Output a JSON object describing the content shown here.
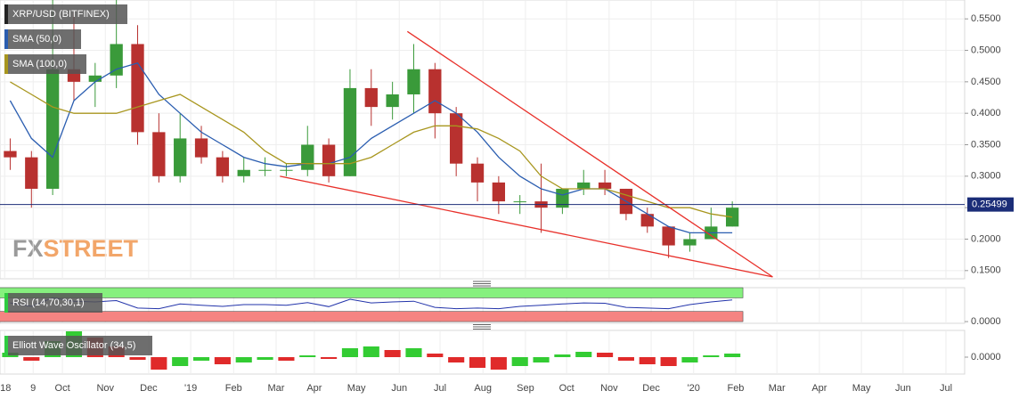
{
  "chart_data": {
    "type": "candlestick",
    "title": "XRP/USD (BITFINEX)",
    "x": [
      -4.25,
      -3.75,
      -3.25,
      -2.75,
      -2.25,
      -1.75,
      -1.25,
      -0.75,
      -0.25,
      0.25,
      0.75,
      1.25,
      1.75,
      2.25,
      2.75,
      3.25,
      3.75,
      4.25,
      4.75,
      5.25,
      5.75,
      6.25,
      6.75,
      7.25,
      7.75,
      8.25,
      8.75,
      9.25,
      9.75,
      10.25,
      10.75,
      11.25,
      11.75,
      12.25,
      12.75
    ],
    "open": [
      0.34,
      0.33,
      0.28,
      0.47,
      0.45,
      0.46,
      0.51,
      0.37,
      0.3,
      0.36,
      0.33,
      0.3,
      0.31,
      0.31,
      0.31,
      0.35,
      0.3,
      0.44,
      0.41,
      0.43,
      0.47,
      0.4,
      0.32,
      0.29,
      0.26,
      0.26,
      0.25,
      0.28,
      0.29,
      0.28,
      0.24,
      0.22,
      0.19,
      0.2,
      0.22
    ],
    "high": [
      0.36,
      0.34,
      0.58,
      0.56,
      0.48,
      0.58,
      0.54,
      0.4,
      0.4,
      0.38,
      0.34,
      0.33,
      0.33,
      0.32,
      0.38,
      0.36,
      0.47,
      0.47,
      0.45,
      0.51,
      0.48,
      0.41,
      0.33,
      0.3,
      0.27,
      0.32,
      0.28,
      0.31,
      0.31,
      0.28,
      0.25,
      0.22,
      0.21,
      0.25,
      0.26
    ],
    "low": [
      0.31,
      0.25,
      0.27,
      0.42,
      0.41,
      0.44,
      0.35,
      0.29,
      0.29,
      0.32,
      0.29,
      0.29,
      0.3,
      0.3,
      0.3,
      0.29,
      0.3,
      0.38,
      0.39,
      0.4,
      0.36,
      0.3,
      0.26,
      0.24,
      0.24,
      0.21,
      0.24,
      0.27,
      0.27,
      0.23,
      0.21,
      0.17,
      0.18,
      0.2,
      0.22
    ],
    "close": [
      0.33,
      0.28,
      0.47,
      0.45,
      0.46,
      0.51,
      0.37,
      0.3,
      0.36,
      0.33,
      0.3,
      0.31,
      0.31,
      0.31,
      0.35,
      0.3,
      0.44,
      0.41,
      0.43,
      0.47,
      0.4,
      0.32,
      0.29,
      0.26,
      0.26,
      0.25,
      0.28,
      0.29,
      0.28,
      0.24,
      0.22,
      0.19,
      0.2,
      0.22,
      0.25
    ],
    "up_color": "#3a9a3a",
    "down_color": "#b8312f",
    "series": [
      {
        "name": "SMA (50,0)",
        "color": "#2a5db0",
        "values": [
          0.42,
          0.36,
          0.33,
          0.42,
          0.45,
          0.47,
          0.48,
          0.43,
          0.4,
          0.37,
          0.35,
          0.33,
          0.32,
          0.315,
          0.32,
          0.32,
          0.33,
          0.36,
          0.38,
          0.4,
          0.42,
          0.4,
          0.37,
          0.33,
          0.3,
          0.28,
          0.27,
          0.28,
          0.28,
          0.26,
          0.24,
          0.22,
          0.21,
          0.21,
          0.21
        ]
      },
      {
        "name": "SMA (100,0)",
        "color": "#a8961e",
        "values": [
          0.45,
          0.43,
          0.41,
          0.4,
          0.4,
          0.4,
          0.41,
          0.42,
          0.43,
          0.41,
          0.39,
          0.37,
          0.34,
          0.32,
          0.32,
          0.32,
          0.32,
          0.33,
          0.35,
          0.37,
          0.38,
          0.38,
          0.375,
          0.36,
          0.34,
          0.3,
          0.28,
          0.28,
          0.28,
          0.27,
          0.26,
          0.25,
          0.25,
          0.24,
          0.235
        ]
      }
    ],
    "trendlines": [
      {
        "color": "#e8302a",
        "x": [
          5.1,
          13.7
        ],
        "y": [
          0.53,
          0.14
        ]
      },
      {
        "color": "#e8302a",
        "x": [
          2.1,
          13.7
        ],
        "y": [
          0.3,
          0.14
        ]
      }
    ],
    "last_price": 0.25499,
    "last_price_color": "#1b2d78",
    "watermark": [
      "FX",
      "STREET"
    ],
    "xlim": [
      -4.49,
      18.22
    ],
    "xticks": [
      {
        "value": -4.38,
        "label": "'18"
      },
      {
        "value": -3.71,
        "label": "9"
      },
      {
        "value": -3.02,
        "label": "Oct"
      },
      {
        "value": -2.01,
        "label": "Nov"
      },
      {
        "value": -0.99,
        "label": "Dec"
      },
      {
        "value": 0,
        "label": "'19"
      },
      {
        "value": 1.01,
        "label": "Feb"
      },
      {
        "value": 2.01,
        "label": "Mar"
      },
      {
        "value": 2.91,
        "label": "Apr"
      },
      {
        "value": 3.9,
        "label": "May"
      },
      {
        "value": 4.91,
        "label": "Jun"
      },
      {
        "value": 5.87,
        "label": "Jul"
      },
      {
        "value": 6.88,
        "label": "Aug"
      },
      {
        "value": 7.88,
        "label": "Sep"
      },
      {
        "value": 8.85,
        "label": "Oct"
      },
      {
        "value": 9.85,
        "label": "Nov"
      },
      {
        "value": 10.84,
        "label": "Dec"
      },
      {
        "value": 11.84,
        "label": "'20"
      },
      {
        "value": 12.83,
        "label": "Feb"
      },
      {
        "value": 13.8,
        "label": "Mar"
      },
      {
        "value": 14.8,
        "label": "Apr"
      },
      {
        "value": 15.79,
        "label": "May"
      },
      {
        "value": 16.77,
        "label": "Jun"
      },
      {
        "value": 17.78,
        "label": "Jul"
      }
    ],
    "ylim": [
      0.137,
      0.58
    ],
    "yticks": [
      {
        "value": 0.15,
        "label": "0.1500"
      },
      {
        "value": 0.2,
        "label": "0.2000"
      },
      {
        "value": 0.25,
        "label": "0.2500"
      },
      {
        "value": 0.3,
        "label": "0.3000"
      },
      {
        "value": 0.35,
        "label": "0.3500"
      },
      {
        "value": 0.4,
        "label": "0.4000"
      },
      {
        "value": 0.45,
        "label": "0.4500"
      },
      {
        "value": 0.5,
        "label": "0.5000"
      },
      {
        "value": 0.55,
        "label": "0.5500"
      }
    ],
    "grid": true,
    "indicators": [
      {
        "type": "line",
        "name": "RSI (14,70,30,1)",
        "color": "#2233aa",
        "values": [
          55,
          45,
          70,
          60,
          58,
          62,
          40,
          38,
          52,
          48,
          45,
          50,
          50,
          48,
          56,
          44,
          66,
          55,
          58,
          60,
          42,
          38,
          40,
          38,
          45,
          48,
          52,
          55,
          54,
          42,
          40,
          38,
          50,
          58,
          64
        ],
        "bands": [
          {
            "from": 70,
            "to": 100,
            "color": "#86f07e"
          },
          {
            "from": 0,
            "to": 30,
            "color": "#f58482"
          }
        ],
        "ylim": [
          -5,
          100
        ],
        "yticks": [
          {
            "value": 0,
            "label": "0.0000"
          }
        ]
      },
      {
        "type": "histogram",
        "name": "Elliott Wave Oscillator (34,5)",
        "up_color": "#33cc33",
        "down_color": "#e02a2a",
        "values": [
          0.005,
          -0.004,
          0.018,
          0.029,
          0.022,
          0.012,
          -0.003,
          -0.014,
          -0.01,
          -0.004,
          -0.008,
          -0.006,
          -0.003,
          -0.004,
          0.002,
          -0.002,
          0.01,
          0.012,
          0.008,
          0.01,
          0.004,
          -0.006,
          -0.012,
          -0.014,
          -0.01,
          -0.006,
          0.003,
          0.006,
          0.005,
          -0.004,
          -0.008,
          -0.01,
          -0.006,
          0.002,
          0.004
        ],
        "ylim": [
          -0.019,
          0.03
        ],
        "yticks": [
          {
            "value": 0,
            "label": "0.0000"
          }
        ]
      }
    ]
  }
}
